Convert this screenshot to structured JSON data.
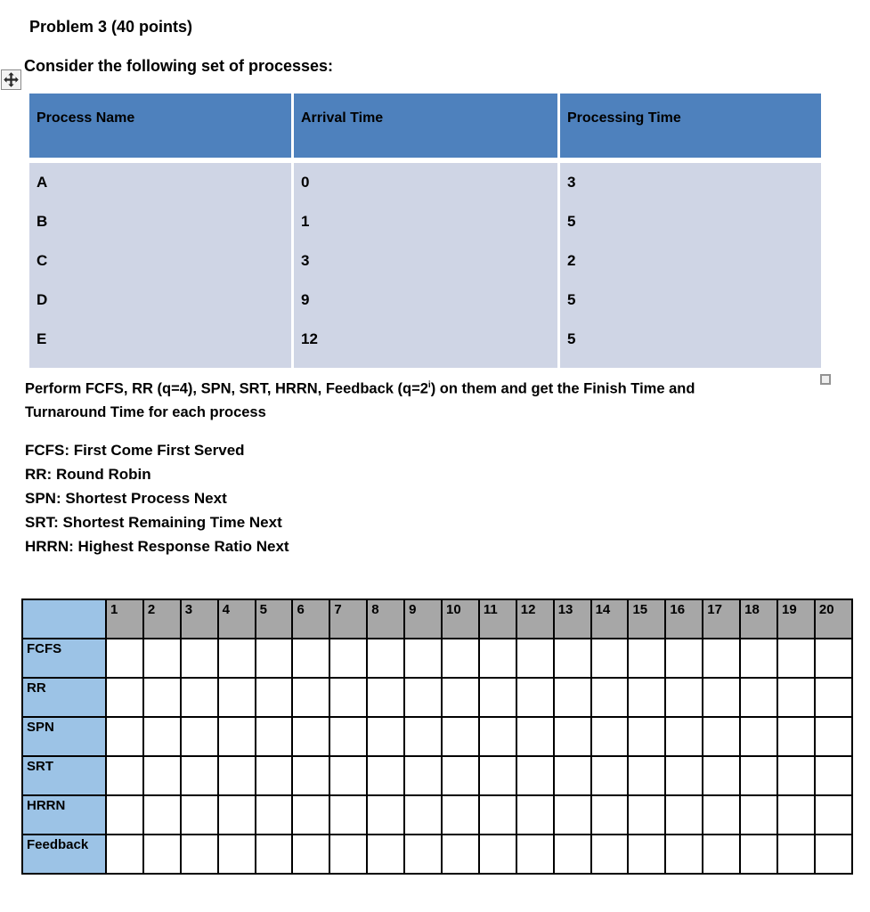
{
  "page": {
    "title": "Problem 3 (40 points)",
    "intro": "Consider the following set of processes:"
  },
  "process_table": {
    "headers": [
      "Process Name",
      "Arrival Time",
      "Processing Time"
    ],
    "rows": [
      {
        "name": "A",
        "arrival": "0",
        "processing": "3"
      },
      {
        "name": "B",
        "arrival": "1",
        "processing": "5"
      },
      {
        "name": "C",
        "arrival": "3",
        "processing": "2"
      },
      {
        "name": "D",
        "arrival": "9",
        "processing": "5"
      },
      {
        "name": "E",
        "arrival": "12",
        "processing": "5"
      }
    ]
  },
  "task": {
    "line1_pre": "Perform FCFS, RR (q=4), SPN, SRT, HRRN, Feedback (q=2",
    "superscript": "i",
    "line1_post": ") on them and get the Finish Time and",
    "line2": "Turnaround Time for each process"
  },
  "definitions": [
    "FCFS: First Come First Served",
    "RR: Round Robin",
    "SPN: Shortest Process Next",
    "SRT: Shortest Remaining Time Next",
    "HRRN: Highest Response Ratio Next"
  ],
  "schedule_grid": {
    "time_columns": [
      "1",
      "2",
      "3",
      "4",
      "5",
      "6",
      "7",
      "8",
      "9",
      "10",
      "11",
      "12",
      "13",
      "14",
      "15",
      "16",
      "17",
      "18",
      "19",
      "20"
    ],
    "row_labels": [
      "FCFS",
      "RR",
      "SPN",
      "SRT",
      "HRRN",
      "Feedback"
    ]
  },
  "icons": {
    "move_handle": "table-move-handle-cross",
    "inline_object": "empty-square-marker"
  },
  "colors": {
    "table_header_bg": "#4e81bd",
    "table_body_bg": "#cfd5e5",
    "grid_label_bg": "#9cc3e6",
    "grid_header_bg": "#a7a7a7",
    "grid_border": "#000000",
    "text": "#000000"
  }
}
